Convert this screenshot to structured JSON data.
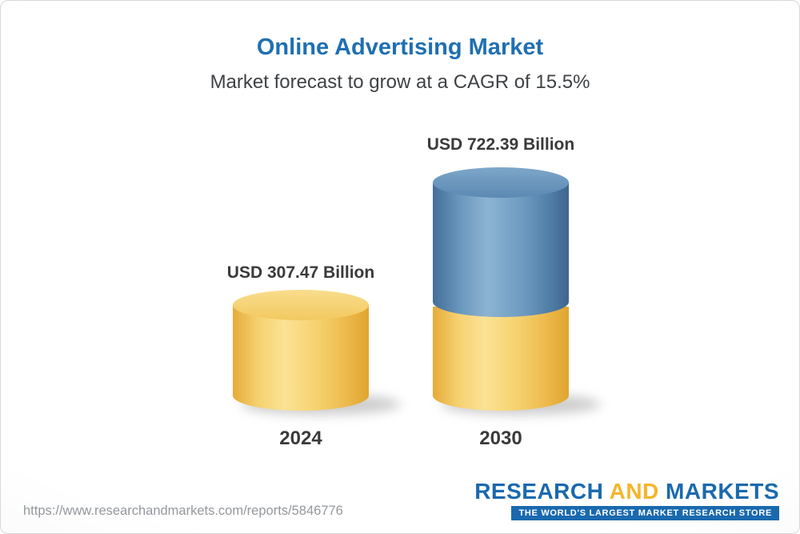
{
  "header": {
    "title": "Online Advertising Market",
    "subtitle": "Market forecast to grow at a CAGR of 15.5%"
  },
  "chart_data": {
    "type": "bar",
    "title": "Online Advertising Market",
    "subtitle": "Market forecast to grow at a CAGR of 15.5%",
    "unit": "USD Billion",
    "cagr_percent": 15.5,
    "categories": [
      "2024",
      "2030"
    ],
    "values": [
      307.47,
      722.39
    ],
    "value_labels": [
      "USD 307.47 Billion",
      "USD 722.39 Billion"
    ],
    "legend": "none",
    "axes": "hidden",
    "bar_style": "3d-cylinder",
    "colors": {
      "bar_base_yellow": "#f2c95f",
      "bar_growth_blue": "#5d8fb9",
      "title_blue": "#1f6fb2",
      "label_gray": "#3a3a3a"
    }
  },
  "footer": {
    "url": "https://www.researchandmarkets.com/reports/5846776",
    "logo": {
      "word1": "RESEARCH",
      "word2": "AND",
      "word3": "MARKETS",
      "tagline": "THE WORLD'S LARGEST MARKET RESEARCH STORE"
    }
  }
}
